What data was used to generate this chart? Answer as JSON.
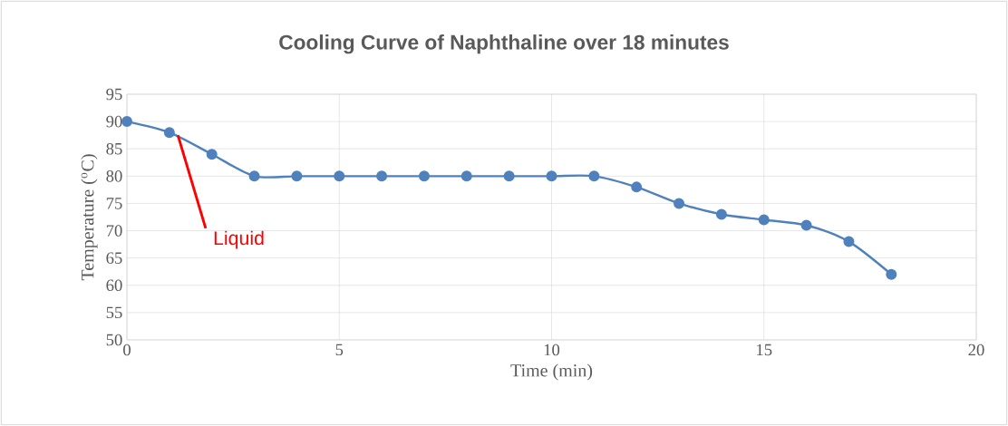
{
  "chart_data": {
    "type": "line",
    "title": "Cooling Curve of Naphthaline over 18 minutes",
    "xlabel": "Time (min)",
    "ylabel": "Temperature ($^{o}$C)",
    "x": [
      0,
      1,
      2,
      3,
      4,
      5,
      6,
      7,
      8,
      9,
      10,
      11,
      12,
      13,
      14,
      15,
      16,
      17,
      18
    ],
    "values": [
      90,
      88,
      84,
      80,
      80,
      80,
      80,
      80,
      80,
      80,
      80,
      80,
      78,
      75,
      73,
      72,
      71,
      68,
      62
    ],
    "color": "#4f81bd",
    "marker": "circle",
    "grid": true,
    "xlim": [
      0,
      20
    ],
    "ylim": [
      50,
      95
    ],
    "xticks": [
      0,
      5,
      10,
      15,
      20
    ],
    "yticks": [
      50,
      55,
      60,
      65,
      70,
      75,
      80,
      85,
      90,
      95
    ],
    "annotations": [
      {
        "text": "Liquid",
        "x": 1.2,
        "y": 87.5
      }
    ]
  }
}
